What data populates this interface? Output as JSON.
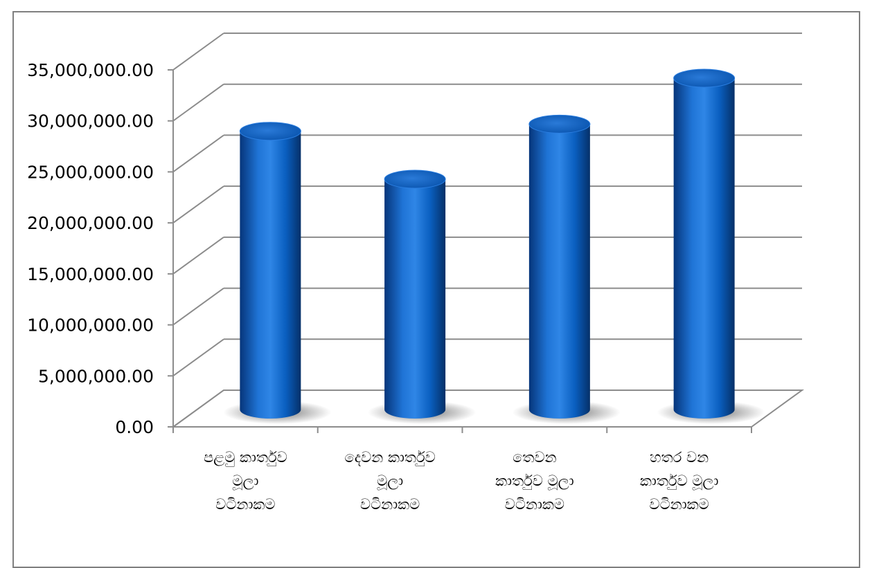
{
  "chart_data": {
    "type": "bar",
    "style": "3d-cylinder",
    "categories": [
      [
        "පළමු කාර්තුව",
        "මූලා",
        "වටිනාකම"
      ],
      [
        "දෙවන කාර්තුව",
        "මූලා",
        "වටිනාකම"
      ],
      [
        "තෙවන",
        "කාර්තුව මූලා",
        "වටිනාකම"
      ],
      [
        "හතර වන",
        "කාර්තුව මූලා",
        "වටිනාකම"
      ]
    ],
    "values": [
      28000000,
      23300000,
      28700000,
      33200000
    ],
    "ylim": [
      0,
      35000000
    ],
    "yticks": [
      "0.00",
      "5,000,000.00",
      "10,000,000.00",
      "15,000,000.00",
      "20,000,000.00",
      "25,000,000.00",
      "30,000,000.00",
      "35,000,000.00"
    ],
    "ytick_values": [
      0,
      5000000,
      10000000,
      15000000,
      20000000,
      25000000,
      30000000,
      35000000
    ],
    "grid": true,
    "legend": "none",
    "colors": {
      "bar": "#0a5fc0",
      "bar_dark": "#06357a",
      "bar_light": "#3d8fe6",
      "grid": "#8c8c8c",
      "axis": "#8c8c8c"
    }
  }
}
